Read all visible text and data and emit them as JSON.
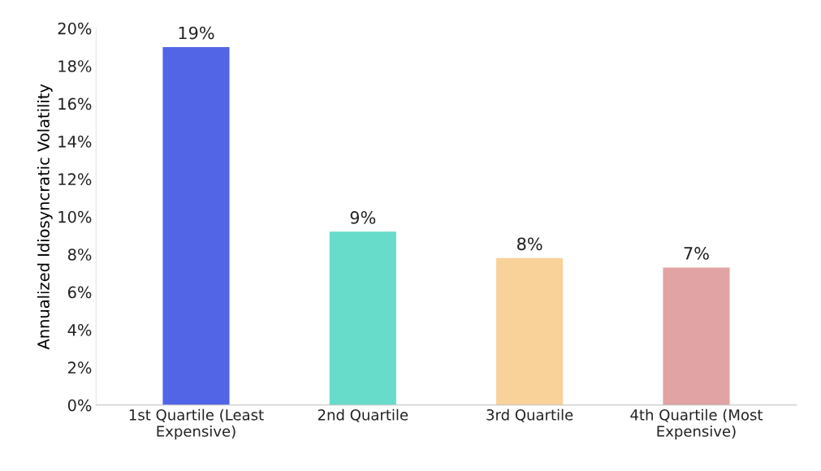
{
  "chart_data": {
    "type": "bar",
    "ylabel": "Annualized Idiosyncratic Volatility",
    "categories": [
      "1st Quartile (Least Expensive)",
      "2nd Quartile",
      "3rd Quartile",
      "4th Quartile (Most Expensive)"
    ],
    "values": [
      19.0,
      9.2,
      7.8,
      7.3
    ],
    "colors": [
      "#5165e6",
      "#68dccb",
      "#f9d29a",
      "#e1a3a3"
    ],
    "value_labels": [
      "19%",
      "9%",
      "8%",
      "7%"
    ],
    "ylim": [
      0,
      20
    ],
    "yticks": [
      {
        "value": 0,
        "label": "0%"
      },
      {
        "value": 2,
        "label": "2%"
      },
      {
        "value": 4,
        "label": "4%"
      },
      {
        "value": 6,
        "label": "6%"
      },
      {
        "value": 8,
        "label": "8%"
      },
      {
        "value": 10,
        "label": "10%"
      },
      {
        "value": 12,
        "label": "12%"
      },
      {
        "value": 14,
        "label": "14%"
      },
      {
        "value": 16,
        "label": "16%"
      },
      {
        "value": 18,
        "label": "18%"
      },
      {
        "value": 20,
        "label": "20%"
      }
    ],
    "grid": false
  }
}
